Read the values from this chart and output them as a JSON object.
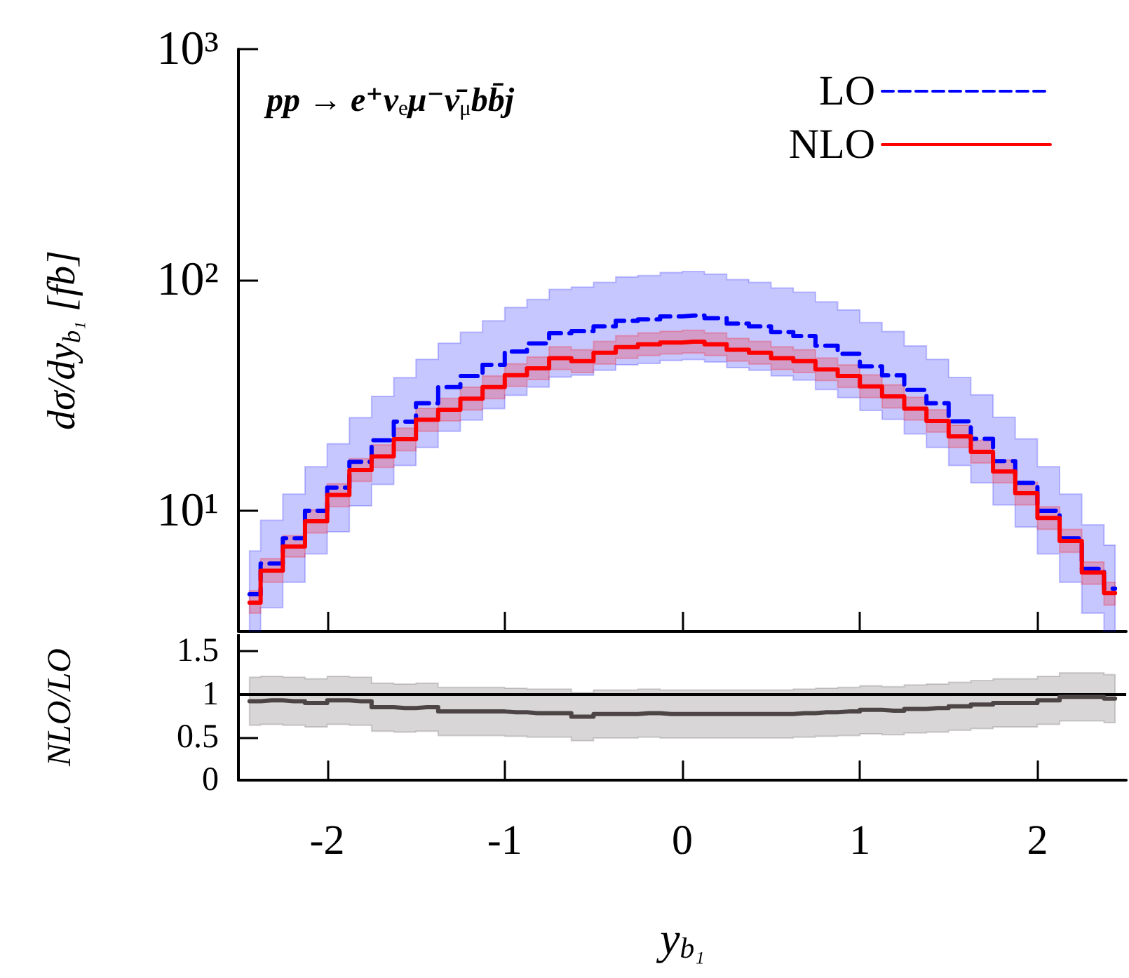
{
  "chart_data": [
    {
      "type": "step",
      "ylabel": "dσ/dy$_{b₁}$ [fb]",
      "annotations": [
        "pp → e⁺ν$_{e}$μ⁻ν̄$_{μ}$bb̄j"
      ],
      "x": [
        -2.4375,
        -2.3125,
        -2.1875,
        -2.0625,
        -1.9375,
        -1.8125,
        -1.6875,
        -1.5625,
        -1.4375,
        -1.3125,
        -1.1875,
        -1.0625,
        -0.9375,
        -0.8125,
        -0.6875,
        -0.5625,
        -0.4375,
        -0.3125,
        -0.1875,
        -0.0625,
        0.0625,
        0.1875,
        0.3125,
        0.4375,
        0.5625,
        0.6875,
        0.8125,
        0.9375,
        1.0625,
        1.1875,
        1.3125,
        1.4375,
        1.5625,
        1.6875,
        1.8125,
        1.9375,
        2.0625,
        2.1875,
        2.3125,
        2.4375
      ],
      "series": [
        {
          "name": "LO",
          "color": "#0000ff",
          "line_style": "dashed",
          "values": [
            4.35,
            5.9,
            7.6,
            10,
            12.6,
            16.3,
            20.2,
            24.3,
            29.2,
            34.3,
            38.3,
            42.9,
            49,
            53.1,
            58.7,
            60,
            62.9,
            66.5,
            67.4,
            69.5,
            70.1,
            68.3,
            64.7,
            62.9,
            59.5,
            57.1,
            51.9,
            47.9,
            42.2,
            38.6,
            33.4,
            29.2,
            24.4,
            20.5,
            16.4,
            13.2,
            10,
            7.6,
            5.6,
            4.6
          ],
          "lower": [
            3,
            3.8,
            4.9,
            6.5,
            8.1,
            10.5,
            13,
            15.7,
            18.8,
            22.1,
            24.7,
            27.7,
            31.6,
            34.3,
            37.9,
            38.7,
            40.6,
            42.9,
            43.5,
            44.8,
            45.2,
            44.1,
            41.7,
            40.6,
            38.4,
            36.8,
            33.5,
            30.9,
            27.2,
            24.9,
            21.5,
            18.8,
            15.7,
            13.2,
            10.6,
            8.5,
            6.5,
            4.9,
            3.6,
            3
          ],
          "upper": [
            6.7,
            9.1,
            11.8,
            15.5,
            19.5,
            25.3,
            31.3,
            37.7,
            45.3,
            53.2,
            59.4,
            66.5,
            76,
            82.3,
            91,
            93,
            97.5,
            103,
            104.5,
            107.7,
            108.7,
            105.9,
            100.3,
            97.5,
            92.2,
            88.5,
            80.4,
            74.2,
            65.4,
            59.8,
            51.8,
            45.3,
            37.8,
            31.8,
            25.4,
            20.5,
            15.5,
            11.8,
            8.7,
            7.1
          ]
        },
        {
          "name": "NLO",
          "color": "#ff0000",
          "line_style": "solid",
          "values": [
            4.0,
            5.5,
            7.0,
            9.0,
            11.7,
            15,
            17.2,
            20.4,
            24.8,
            27.4,
            30.6,
            34.3,
            38.7,
            41.4,
            45.8,
            44.5,
            48.4,
            51.2,
            52.6,
            53.5,
            54,
            52.6,
            49.8,
            48.4,
            45.8,
            44.5,
            41,
            38.3,
            34.6,
            31.3,
            27.7,
            24.5,
            21,
            18,
            14.8,
            11.9,
            9.3,
            7.4,
            5.4,
            4.4
          ],
          "lower": [
            3.6,
            4.9,
            6.3,
            8,
            10.4,
            13.4,
            15.4,
            18.2,
            22.1,
            24.5,
            27.3,
            30.6,
            34.6,
            37,
            40.9,
            39.7,
            43.2,
            45.7,
            47,
            47.8,
            48.2,
            47,
            44.5,
            43.2,
            40.9,
            39.7,
            36.6,
            34.2,
            30.9,
            27.9,
            24.7,
            21.9,
            18.8,
            16.1,
            13.2,
            10.6,
            8.3,
            6.6,
            4.8,
            3.9
          ],
          "upper": [
            4.5,
            6.2,
            7.8,
            10.1,
            13.1,
            16.8,
            19.3,
            22.8,
            27.8,
            30.7,
            34.3,
            38.4,
            43.3,
            46.4,
            51.3,
            49.8,
            54.2,
            57.3,
            58.9,
            59.9,
            60.5,
            58.9,
            55.8,
            54.2,
            51.3,
            49.8,
            45.9,
            42.9,
            38.8,
            35.1,
            31,
            27.4,
            23.5,
            20.2,
            16.6,
            13.3,
            10.4,
            8.3,
            6,
            4.9
          ]
        }
      ],
      "xlim": [
        -2.5,
        2.5
      ],
      "xticks": [
        -2,
        -1,
        0,
        1,
        2
      ],
      "ylim": [
        3,
        1000
      ],
      "yticks": [
        {
          "value": 10,
          "label": "10¹"
        },
        {
          "value": 100,
          "label": "10²"
        },
        {
          "value": 1000,
          "label": "10³"
        }
      ],
      "log": "y",
      "grid": false,
      "legend": "top right",
      "tick_labels": "y"
    },
    {
      "type": "step",
      "xlabel": "y$_{b₁}$",
      "ylabel": "NLO/LO",
      "x": [
        -2.4375,
        -2.3125,
        -2.1875,
        -2.0625,
        -1.9375,
        -1.8125,
        -1.6875,
        -1.5625,
        -1.4375,
        -1.3125,
        -1.1875,
        -1.0625,
        -0.9375,
        -0.8125,
        -0.6875,
        -0.5625,
        -0.4375,
        -0.3125,
        -0.1875,
        -0.0625,
        0.0625,
        0.1875,
        0.3125,
        0.4375,
        0.5625,
        0.6875,
        0.8125,
        0.9375,
        1.0625,
        1.1875,
        1.3125,
        1.4375,
        1.5625,
        1.6875,
        1.8125,
        1.9375,
        2.0625,
        2.1875,
        2.3125,
        2.4375
      ],
      "series": [
        {
          "color": "#4d4545",
          "line_style": "solid",
          "values": [
            0.92,
            0.93,
            0.92,
            0.9,
            0.93,
            0.92,
            0.85,
            0.84,
            0.85,
            0.8,
            0.8,
            0.8,
            0.79,
            0.78,
            0.78,
            0.74,
            0.77,
            0.77,
            0.78,
            0.77,
            0.77,
            0.77,
            0.77,
            0.77,
            0.77,
            0.78,
            0.79,
            0.8,
            0.82,
            0.81,
            0.83,
            0.84,
            0.86,
            0.88,
            0.9,
            0.9,
            0.93,
            0.97,
            0.97,
            0.95
          ],
          "lower": [
            0.64,
            0.65,
            0.64,
            0.62,
            0.65,
            0.64,
            0.57,
            0.56,
            0.57,
            0.52,
            0.52,
            0.52,
            0.51,
            0.5,
            0.5,
            0.46,
            0.49,
            0.49,
            0.5,
            0.49,
            0.49,
            0.49,
            0.49,
            0.49,
            0.49,
            0.5,
            0.51,
            0.52,
            0.54,
            0.53,
            0.55,
            0.56,
            0.58,
            0.6,
            0.62,
            0.62,
            0.65,
            0.69,
            0.69,
            0.67
          ],
          "upper": [
            1.2,
            1.21,
            1.2,
            1.18,
            1.21,
            1.2,
            1.13,
            1.12,
            1.13,
            1.08,
            1.08,
            1.08,
            1.07,
            1.06,
            1.06,
            1.02,
            1.05,
            1.05,
            1.06,
            1.05,
            1.05,
            1.05,
            1.05,
            1.05,
            1.05,
            1.06,
            1.07,
            1.08,
            1.1,
            1.09,
            1.11,
            1.12,
            1.14,
            1.16,
            1.18,
            1.18,
            1.21,
            1.25,
            1.25,
            1.23
          ]
        }
      ],
      "xlim": [
        -2.5,
        2.5
      ],
      "xticks": [
        -2,
        -1,
        0,
        1,
        2
      ],
      "ylim": [
        0,
        1.7
      ],
      "yticks": [
        0,
        0.5,
        1,
        1.5
      ],
      "ref_lines": [
        {
          "axis": "y",
          "value": 1,
          "color": "#000000"
        }
      ],
      "grid": false
    }
  ]
}
